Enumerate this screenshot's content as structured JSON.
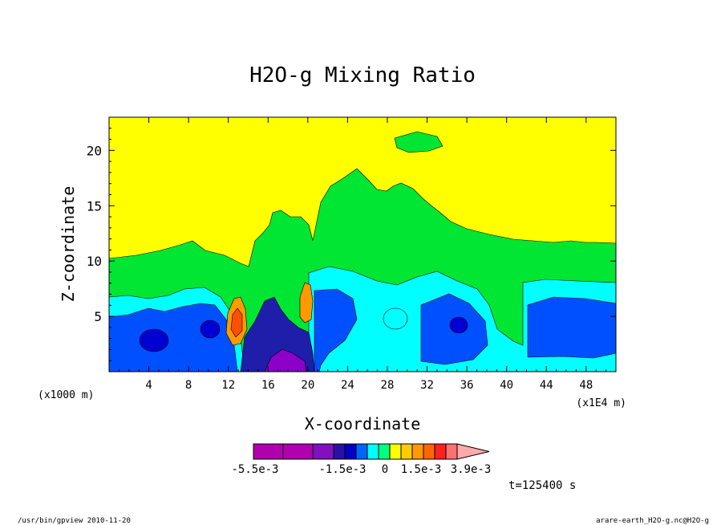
{
  "chart_data": {
    "type": "heatmap",
    "subtype": "filled-contour",
    "title": "H2O-g Mixing Ratio",
    "xlabel": "X-coordinate",
    "ylabel": "Z-coordinate",
    "x_unit_left": "(x1000 m)",
    "x_unit_right": "(x1E4 m)",
    "xlim": [
      0,
      51
    ],
    "ylim": [
      0,
      23
    ],
    "x_ticks": [
      4,
      8,
      12,
      16,
      20,
      24,
      28,
      32,
      36,
      40,
      44,
      48
    ],
    "x_tick_labels": [
      "4",
      "8",
      "12",
      "16",
      "20",
      "24",
      "28",
      "32",
      "36",
      "40",
      "44",
      "48"
    ],
    "y_ticks": [
      5,
      10,
      15,
      20
    ],
    "y_tick_labels": [
      "5",
      "10",
      "15",
      "20"
    ],
    "time_label": "t=125400 s",
    "colorbar": {
      "colors": [
        "#b000b0",
        "#b000b0",
        "#8010c0",
        "#2a10a8",
        "#0000c8",
        "#0064ff",
        "#00ffff",
        "#00ff7f",
        "#ffff00",
        "#ffcc00",
        "#ff9900",
        "#ff6600",
        "#ff2020",
        "#ff7070",
        "#ffaaaa"
      ],
      "tick_labels": [
        "-5.5e-3",
        "-1.5e-3",
        "0",
        "1.5e-3",
        "3.9e-3"
      ]
    },
    "field_colors": {
      "background": "#ffff00",
      "green": "#00e632",
      "cyan": "#00ffff",
      "blue": "#0050ff",
      "navy": "#0000d2",
      "purple": "#8c00c8",
      "deep_blue": "#1e1eaa",
      "orange": "#ff9900",
      "red_orange": "#ff5000"
    }
  },
  "footer": {
    "left": "/usr/bin/gpview  2010-11-20",
    "right": "arare-earth_H2O-g.nc@H2O-g"
  }
}
